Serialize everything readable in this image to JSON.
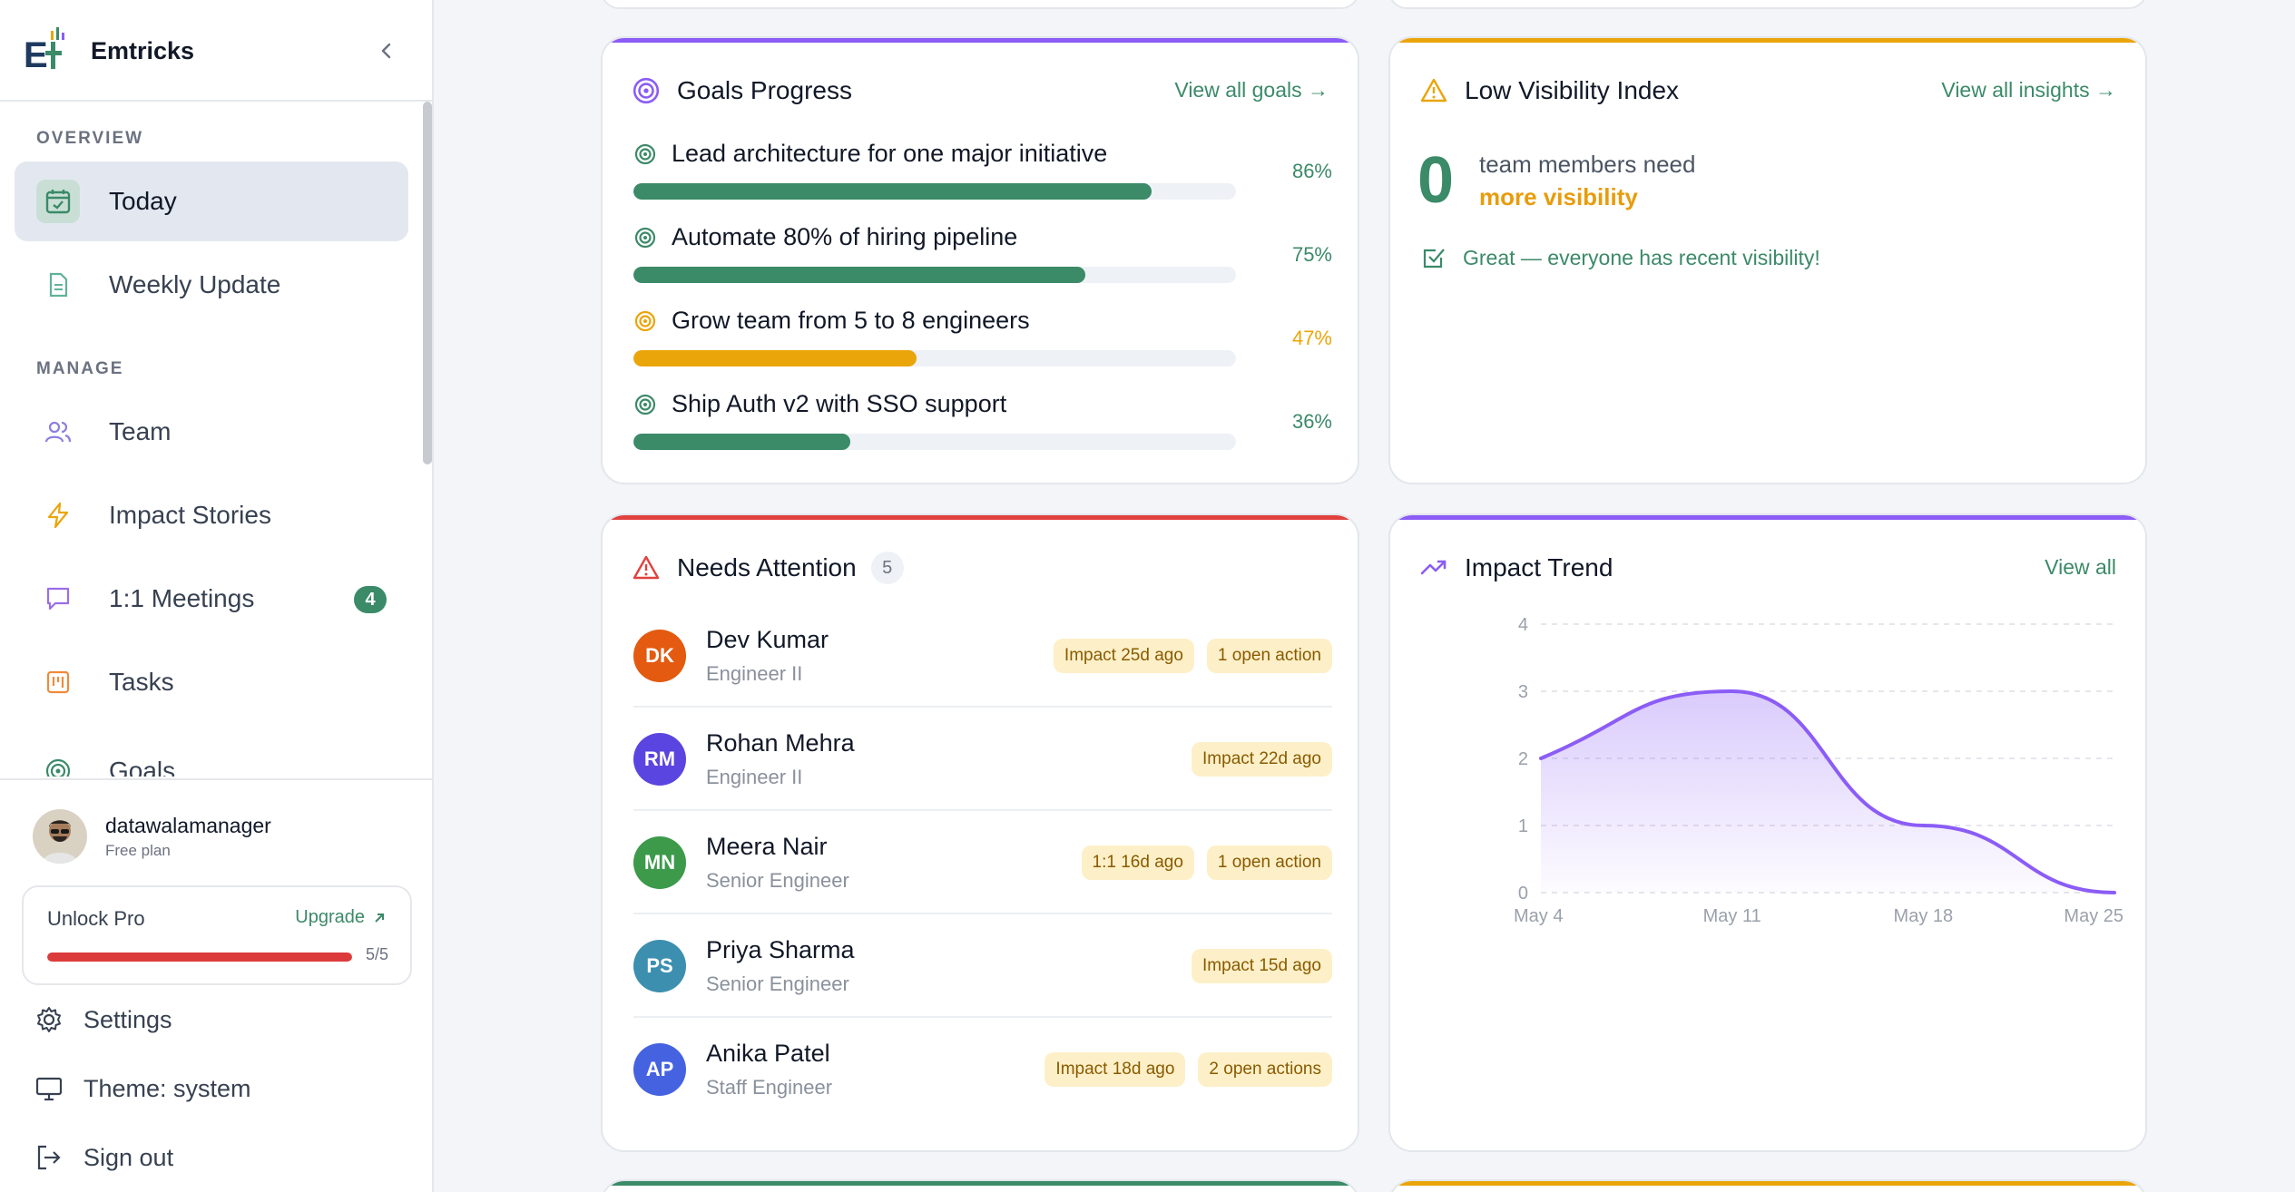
{
  "brand": {
    "name": "Emtricks"
  },
  "sidebar": {
    "sections": {
      "overview": "OVERVIEW",
      "manage": "MANAGE"
    },
    "overview_items": [
      {
        "label": "Today",
        "icon": "calendar-check-icon",
        "active": true
      },
      {
        "label": "Weekly Update",
        "icon": "document-icon",
        "active": false
      }
    ],
    "manage_items": [
      {
        "label": "Team",
        "icon": "users-icon"
      },
      {
        "label": "Impact Stories",
        "icon": "lightning-icon"
      },
      {
        "label": "1:1 Meetings",
        "icon": "chat-icon",
        "badge": "4"
      },
      {
        "label": "Tasks",
        "icon": "kanban-icon"
      },
      {
        "label": "Goals",
        "icon": "target-icon"
      }
    ],
    "user": {
      "name": "datawalamanager",
      "plan": "Free plan"
    },
    "pro": {
      "title": "Unlock Pro",
      "upgrade_label": "Upgrade",
      "usage": "5/5",
      "usage_fraction": 1.0
    },
    "bottom": {
      "settings": "Settings",
      "theme": "Theme: system",
      "signout": "Sign out"
    }
  },
  "goals_card": {
    "title": "Goals Progress",
    "link": "View all goals →",
    "accent": "#8b5cf6",
    "goals": [
      {
        "title": "Lead architecture for one major initiative",
        "pct": "86%",
        "value": 0.86,
        "color": "#3b8a68"
      },
      {
        "title": "Automate 80% of hiring pipeline",
        "pct": "75%",
        "value": 0.75,
        "color": "#3b8a68"
      },
      {
        "title": "Grow team from 5 to 8 engineers",
        "pct": "47%",
        "value": 0.47,
        "color": "#eaa50a"
      },
      {
        "title": "Ship Auth v2 with SSO support",
        "pct": "36%",
        "value": 0.36,
        "color": "#3b8a68"
      }
    ]
  },
  "visibility_card": {
    "title": "Low Visibility Index",
    "link": "View all insights →",
    "accent": "#eaa50a",
    "count": "0",
    "line1": "team members need",
    "line2": "more visibility",
    "status": "Great — everyone has recent visibility!"
  },
  "attention_card": {
    "title": "Needs Attention",
    "count": "5",
    "accent": "#e0413f",
    "people": [
      {
        "initials": "DK",
        "name": "Dev Kumar",
        "role": "Engineer II",
        "color": "#e35a10",
        "tags": [
          "Impact 25d ago",
          "1 open action"
        ]
      },
      {
        "initials": "RM",
        "name": "Rohan Mehra",
        "role": "Engineer II",
        "color": "#5b45e0",
        "tags": [
          "Impact 22d ago"
        ]
      },
      {
        "initials": "MN",
        "name": "Meera Nair",
        "role": "Senior Engineer",
        "color": "#3c9a4a",
        "tags": [
          "1:1 16d ago",
          "1 open action"
        ]
      },
      {
        "initials": "PS",
        "name": "Priya Sharma",
        "role": "Senior Engineer",
        "color": "#3d8fb0",
        "tags": [
          "Impact 15d ago"
        ]
      },
      {
        "initials": "AP",
        "name": "Anika Patel",
        "role": "Staff Engineer",
        "color": "#4563e0",
        "tags": [
          "Impact 18d ago",
          "2 open actions"
        ]
      }
    ]
  },
  "trend_card": {
    "title": "Impact Trend",
    "link": "View all",
    "accent": "#8b5cf6"
  },
  "chart_data": {
    "type": "area",
    "x": [
      "May 4",
      "May 11",
      "May 18",
      "May 25"
    ],
    "series": [
      {
        "values": [
          2,
          3,
          1,
          0
        ],
        "color": "#8b5cf6"
      }
    ],
    "ylim": [
      0,
      4
    ],
    "yticks": [
      "0",
      "1",
      "2",
      "3",
      "4"
    ],
    "grid": true
  }
}
